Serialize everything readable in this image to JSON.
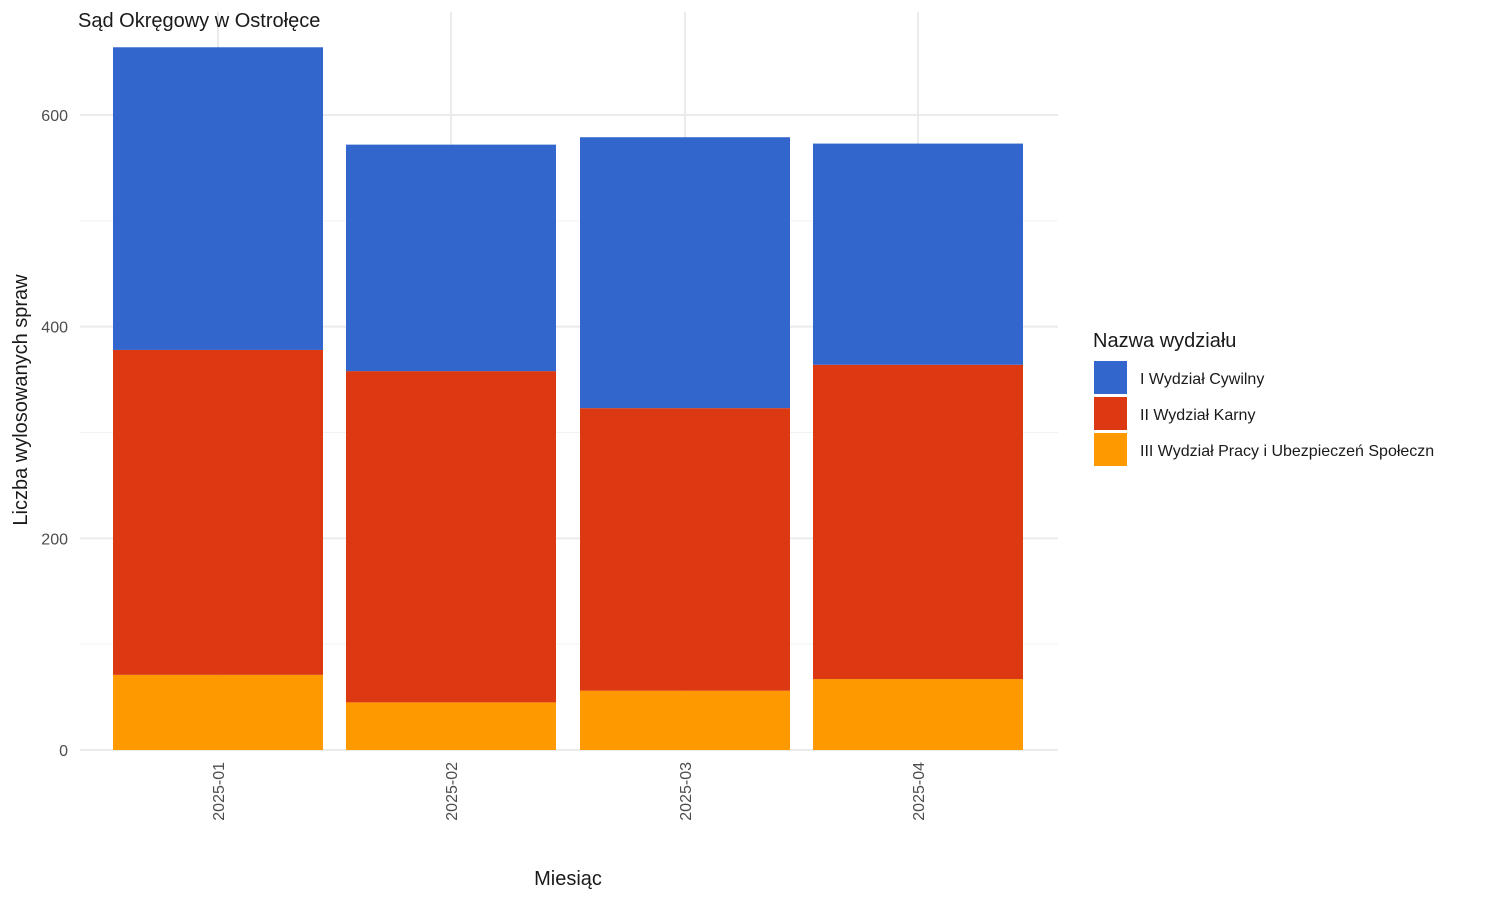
{
  "chart_data": {
    "type": "bar",
    "stacked": true,
    "title": "Sąd Okręgowy w Ostrołęce",
    "xlabel": "Miesiąc",
    "ylabel": "Liczba wylosowanych spraw",
    "categories": [
      "2025-01",
      "2025-02",
      "2025-03",
      "2025-04"
    ],
    "ylim": [
      0,
      665
    ],
    "y_ticks": [
      0,
      200,
      400,
      600
    ],
    "grid": true,
    "legend": {
      "title": "Nazwa wydziału",
      "position": "right"
    },
    "series": [
      {
        "name": "III Wydział Pracy i Ubezpieczeń Społeczn",
        "color": "#FF9900",
        "values": [
          71,
          45,
          56,
          67
        ]
      },
      {
        "name": "II Wydział Karny",
        "color": "#DC3912",
        "values": [
          307,
          313,
          267,
          297
        ]
      },
      {
        "name": "I Wydział Cywilny",
        "color": "#3366CC",
        "values": [
          286,
          214,
          256,
          209
        ]
      }
    ],
    "legend_order": [
      "I Wydział Cywilny",
      "II Wydział Karny",
      "III Wydział Pracy i Ubezpieczeń Społeczn"
    ]
  }
}
